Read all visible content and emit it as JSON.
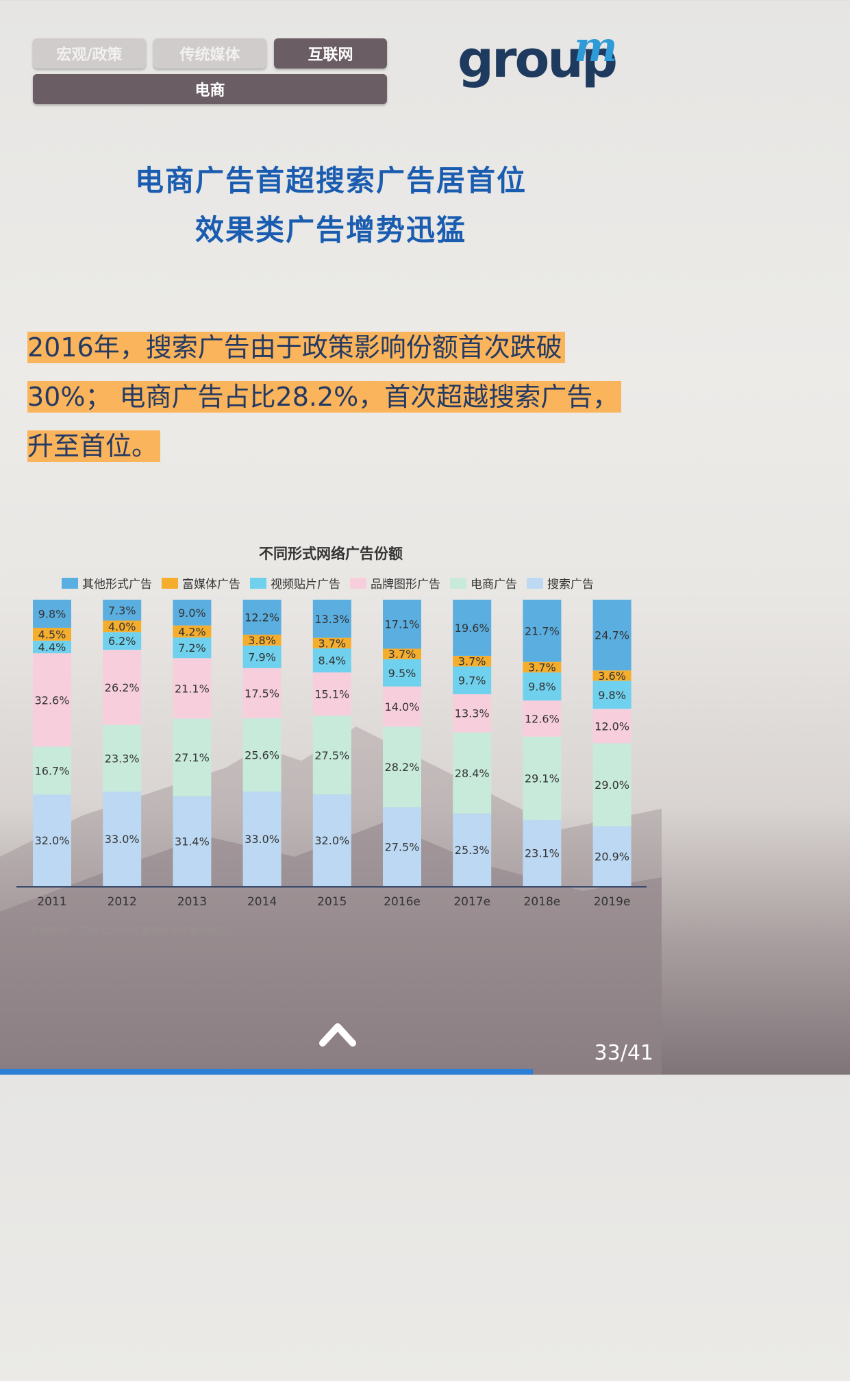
{
  "tabs": [
    {
      "label": "宏观/政策",
      "state": "inactive"
    },
    {
      "label": "传统媒体",
      "state": "inactive"
    },
    {
      "label": "互联网",
      "state": "active"
    },
    {
      "label": "电商",
      "state": "active"
    }
  ],
  "logo": {
    "text": "group",
    "superscript": "m"
  },
  "headline": {
    "line1": "电商广告首超搜索广告居首位",
    "line2": "效果类广告增势迅猛"
  },
  "highlight_text": {
    "line1": "2016年，搜索广告由于政策影响份额首次跌破",
    "line2": "30%； 电商广告占比28.2%，首次超越搜索广告，",
    "line3": "升至首位。"
  },
  "chart_data": {
    "type": "bar",
    "stacked": true,
    "normalized": "percent",
    "title": "不同形式网络广告份额",
    "categories": [
      "2011",
      "2012",
      "2013",
      "2014",
      "2015",
      "2016e",
      "2017e",
      "2018e",
      "2019e"
    ],
    "series": [
      {
        "name": "搜索广告",
        "color": "#bcd8f2",
        "values": [
          32.0,
          33.0,
          31.4,
          33.0,
          32.0,
          27.5,
          25.3,
          23.1,
          20.9
        ]
      },
      {
        "name": "电商广告",
        "color": "#c7eadb",
        "values": [
          16.7,
          23.3,
          27.1,
          25.6,
          27.5,
          28.2,
          28.4,
          29.1,
          29.0
        ]
      },
      {
        "name": "品牌图形广告",
        "color": "#f7cfdc",
        "values": [
          32.6,
          26.2,
          21.1,
          17.5,
          15.1,
          14.0,
          13.3,
          12.6,
          12.0
        ]
      },
      {
        "name": "视频贴片广告",
        "color": "#6fd1ee",
        "values": [
          4.4,
          6.2,
          7.2,
          7.9,
          8.4,
          9.5,
          9.7,
          9.8,
          9.8
        ]
      },
      {
        "name": "富媒体广告",
        "color": "#f5ad2e",
        "values": [
          4.5,
          4.0,
          4.2,
          3.8,
          3.7,
          3.7,
          3.7,
          3.7,
          3.6
        ]
      },
      {
        "name": "其他形式广告",
        "color": "#5aaee0",
        "values": [
          9.8,
          7.3,
          9.0,
          12.2,
          13.3,
          17.1,
          19.6,
          21.7,
          24.7
        ]
      }
    ],
    "legend_order": [
      "其他形式广告",
      "富媒体广告",
      "视频贴片广告",
      "品牌图形广告",
      "电商广告",
      "搜索广告"
    ],
    "ylim": [
      0,
      100
    ],
    "legend_position": "top",
    "source": "数据来源：艾瑞《2016年度数据发布集合报告》"
  },
  "nav": {
    "page": "33/41",
    "up_icon": "chevron-up-icon",
    "progress": 0.805
  }
}
